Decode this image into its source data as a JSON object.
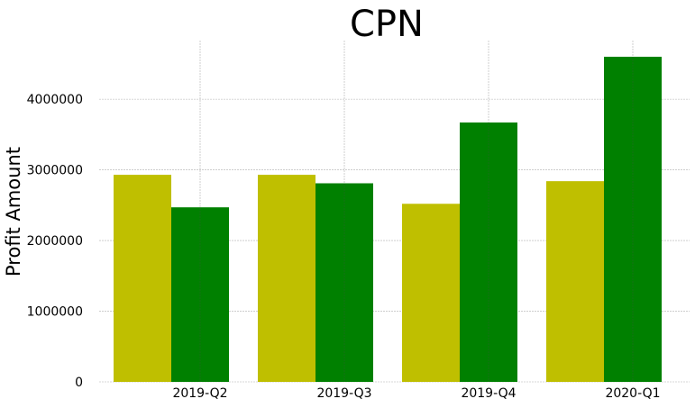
{
  "chart_data": {
    "type": "bar",
    "title": "CPN",
    "xlabel": "",
    "ylabel": "Profit Amount",
    "categories": [
      "2019-Q2",
      "2019-Q3",
      "2019-Q4",
      "2020-Q1"
    ],
    "series": [
      {
        "color": "#bfbf00",
        "values": [
          2930000,
          2930000,
          2520000,
          2840000
        ]
      },
      {
        "color": "#008000",
        "values": [
          2470000,
          2810000,
          3670000,
          4600000
        ]
      }
    ],
    "ylim": [
      0,
      4830000
    ],
    "yticks": [
      0,
      1000000,
      2000000,
      3000000,
      4000000
    ],
    "ytick_labels": [
      "0",
      "1000000",
      "2000000",
      "3000000",
      "4000000"
    ],
    "grid": true,
    "legend": false
  }
}
